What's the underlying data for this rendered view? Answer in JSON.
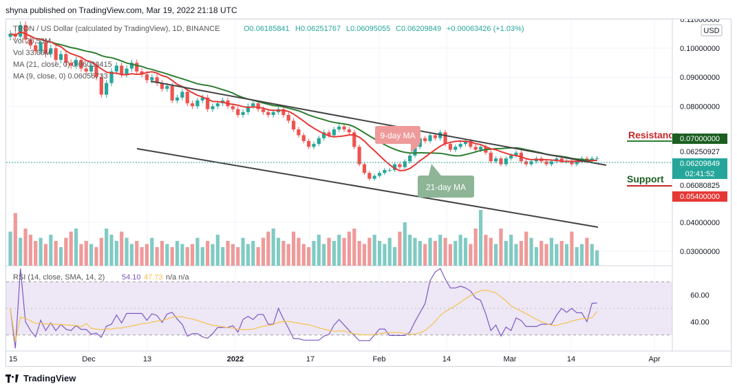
{
  "header": {
    "text": "shyna published on TradingView.com, Mar 19, 2022 21:18 UTC"
  },
  "footer": {
    "brand": "TradingView"
  },
  "symbol": {
    "name": "TRON / US Dollar (calculated by TradingView), 1D, BINANCE",
    "o": "O0.06185841",
    "h": "H0.06251767",
    "l": "L0.06095055",
    "c": "C0.06209849",
    "chg": "+0.00063426 (+1.03%)"
  },
  "indicators": {
    "vol1": "Vol 20.53M",
    "vol2": "Vol 33.66M",
    "ma21": "MA (21, close, 0) 0.06033415",
    "ma9": "MA (9, close, 0) 0.06056733",
    "rsi_label": "RSI (14, close, SMA, 14, 2)",
    "rsi_val": "54.10",
    "rsi_sma": "47.73",
    "rsi_na": "n/a  n/a"
  },
  "currency": "USD",
  "price_axis": [
    "0.11000000",
    "0.10000000",
    "0.09000000",
    "0.08000000",
    "0.04000000",
    "0.03000000"
  ],
  "rsi_axis": [
    "60.00",
    "40.00"
  ],
  "time_axis": [
    "15",
    "Dec",
    "13",
    "2022",
    "17",
    "Feb",
    "14",
    "Mar",
    "14",
    "Apr"
  ],
  "price_tags": {
    "resistance": "0.07000000",
    "p1": "0.06250927",
    "last": "0.06209849",
    "countdown": "02:41:52",
    "p2": "0.06080825",
    "support": "0.05400000"
  },
  "annotations": {
    "resistance": "Resistance",
    "support": "Support",
    "ma9": "9-day MA",
    "ma21": "21-day MA"
  },
  "colors": {
    "up": "#26a69a",
    "down": "#ef5350",
    "ma9": "#e53935",
    "ma21": "#2e7d32",
    "rsi": "#7e57c2",
    "rsi_sma": "#f6c34a"
  },
  "chart_data": {
    "type": "candlestick",
    "title": "TRON / US Dollar, 1D, BINANCE",
    "ylabel": "USD",
    "ylim": [
      0.025,
      0.11
    ],
    "x_ticks": [
      "15",
      "Dec",
      "13",
      "2022",
      "17",
      "Feb",
      "14",
      "Mar",
      "14",
      "Apr"
    ],
    "close": [
      0.105,
      0.104,
      0.108,
      0.103,
      0.101,
      0.099,
      0.102,
      0.098,
      0.1,
      0.096,
      0.098,
      0.095,
      0.094,
      0.096,
      0.093,
      0.092,
      0.094,
      0.09,
      0.084,
      0.088,
      0.092,
      0.094,
      0.091,
      0.093,
      0.095,
      0.092,
      0.091,
      0.089,
      0.09,
      0.088,
      0.086,
      0.087,
      0.082,
      0.083,
      0.085,
      0.081,
      0.08,
      0.082,
      0.083,
      0.079,
      0.08,
      0.081,
      0.082,
      0.08,
      0.079,
      0.077,
      0.078,
      0.08,
      0.081,
      0.079,
      0.078,
      0.077,
      0.078,
      0.079,
      0.077,
      0.075,
      0.072,
      0.07,
      0.068,
      0.066,
      0.067,
      0.069,
      0.071,
      0.07,
      0.072,
      0.073,
      0.072,
      0.071,
      0.066,
      0.06,
      0.057,
      0.055,
      0.056,
      0.057,
      0.058,
      0.058,
      0.06,
      0.059,
      0.061,
      0.063,
      0.066,
      0.069,
      0.068,
      0.07,
      0.069,
      0.071,
      0.067,
      0.065,
      0.066,
      0.067,
      0.068,
      0.066,
      0.065,
      0.066,
      0.064,
      0.061,
      0.062,
      0.06,
      0.062,
      0.063,
      0.064,
      0.061,
      0.06,
      0.061,
      0.062,
      0.061,
      0.06,
      0.061,
      0.062,
      0.061,
      0.061,
      0.06,
      0.061,
      0.062,
      0.061,
      0.062,
      0.0621
    ],
    "volume_relative": [
      0.55,
      0.85,
      0.45,
      0.6,
      0.5,
      0.4,
      0.45,
      0.35,
      0.5,
      0.4,
      0.3,
      0.45,
      0.55,
      0.6,
      0.35,
      0.4,
      0.35,
      0.3,
      0.45,
      0.6,
      0.5,
      0.4,
      0.55,
      0.45,
      0.35,
      0.4,
      0.3,
      0.35,
      0.45,
      0.3,
      0.4,
      0.35,
      0.3,
      0.4,
      0.35,
      0.3,
      0.35,
      0.45,
      0.3,
      0.4,
      0.35,
      0.5,
      0.3,
      0.4,
      0.35,
      0.3,
      0.45,
      0.35,
      0.4,
      0.3,
      0.45,
      0.55,
      0.6,
      0.45,
      0.4,
      0.35,
      0.55,
      0.45,
      0.35,
      0.3,
      0.4,
      0.5,
      0.35,
      0.45,
      0.4,
      0.5,
      0.45,
      0.55,
      0.6,
      0.4,
      0.35,
      0.45,
      0.5,
      0.4,
      0.35,
      0.45,
      0.3,
      0.55,
      0.7,
      0.5,
      0.45,
      0.4,
      0.35,
      0.45,
      0.4,
      0.5,
      0.45,
      0.35,
      0.4,
      0.5,
      0.45,
      0.35,
      0.6,
      0.9,
      0.5,
      0.45,
      0.35,
      0.6,
      0.4,
      0.5,
      0.35,
      0.4,
      0.55,
      0.45,
      0.3,
      0.4,
      0.35,
      0.45,
      0.35,
      0.4,
      0.35,
      0.55,
      0.3,
      0.35,
      0.45,
      0.35,
      0.25
    ],
    "rsi": {
      "value": 54.1,
      "sma": 47.73,
      "band": [
        30,
        70
      ],
      "ylim": [
        20,
        80
      ]
    }
  }
}
